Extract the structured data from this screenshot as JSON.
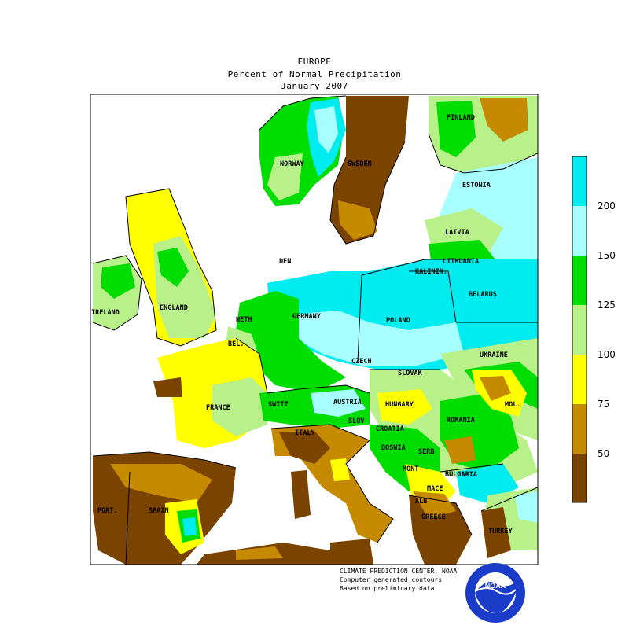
{
  "title": {
    "line1": "EUROPE",
    "line2": "Percent of Normal Precipitation",
    "line3": "January 2007"
  },
  "palette": {
    "brown_dark": "#7a4400",
    "brown_light": "#c68a00",
    "yellow": "#ffff00",
    "light_green": "#b8f08a",
    "green": "#00dd00",
    "light_cyan": "#a8ffff",
    "cyan": "#00ecf0",
    "ocean": "#ffffff"
  },
  "legend": {
    "ticks": [
      "200",
      "150",
      "125",
      "100",
      "75",
      "50"
    ]
  },
  "countries": {
    "finland": "FINLAND",
    "norway": "NORWAY",
    "sweden": "SWEDEN",
    "estonia": "ESTONIA",
    "latvia": "LATVIA",
    "lithuania": "LITHUANIA",
    "kalinin": "KALININ.",
    "belarus": "BELARUS",
    "den": "DEN",
    "ireland": "IRELAND",
    "england": "ENGLAND",
    "neth": "NETH",
    "bel": "BEL.",
    "germany": "GERMANY",
    "poland": "POLAND",
    "ukraine": "UKRAINE",
    "czech": "CZECH",
    "slovak": "SLOVAK",
    "france": "FRANCE",
    "switz": "SWITZ",
    "austria": "AUSTRIA",
    "hungary": "HUNGARY",
    "romania": "ROMANIA",
    "mold": "MOL.",
    "slov": "SLOV",
    "croatia": "CROATIA",
    "bosnia": "BOSNIA",
    "serb": "SERB",
    "mont": "MONT",
    "bulgaria": "BULGARIA",
    "maced": "MACE",
    "alb": "ALB",
    "italy": "ITALY",
    "greece": "GREECE",
    "turkey": "TURKEY",
    "port": "PORT.",
    "spain": "SPAIN"
  },
  "credits": {
    "line1": "CLIMATE PREDICTION CENTER, NOAA",
    "line2": "Computer generated contours",
    "line3": "Based on preliminary data"
  },
  "logo": {
    "text": "NOAA",
    "ring_text": "NATIONAL OCEANIC AND ATMOSPHERIC ADMINISTRATION"
  }
}
